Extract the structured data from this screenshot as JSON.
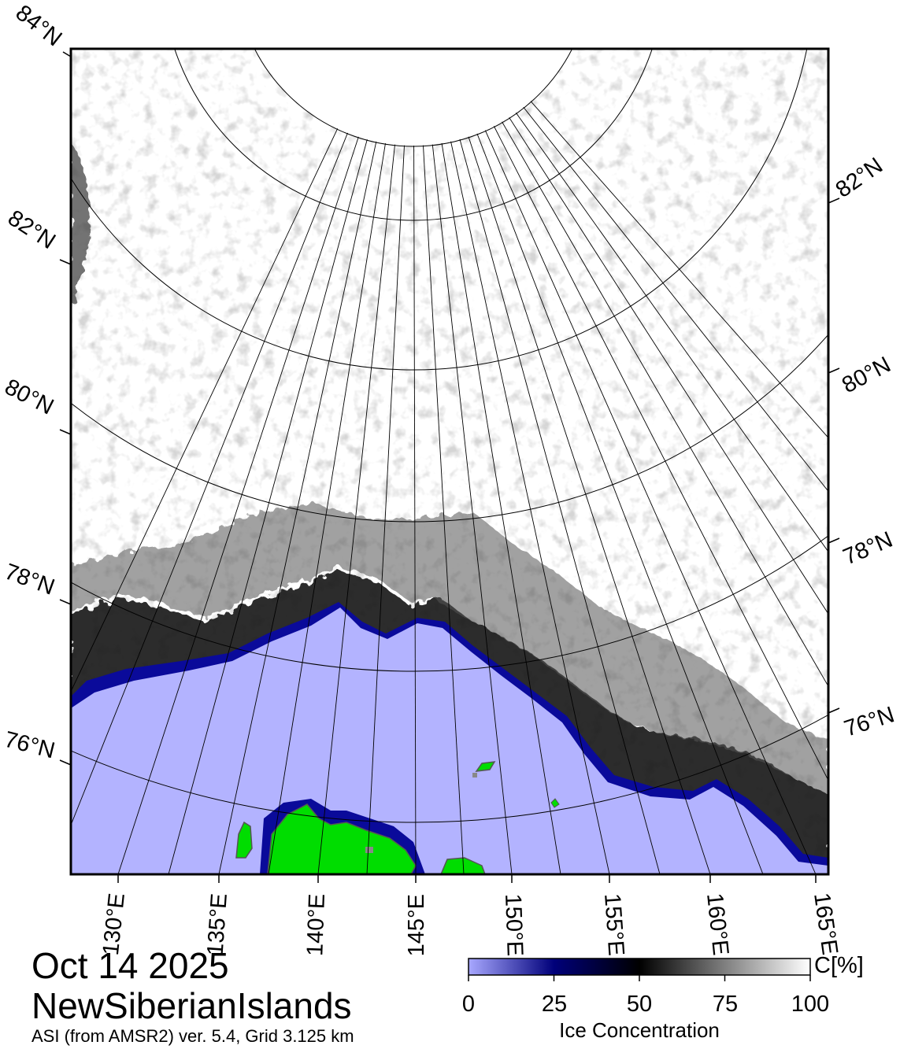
{
  "map": {
    "type": "sea-ice-concentration-map",
    "projection": "polar stereographic",
    "colors": {
      "ice_high": "#ffffff",
      "ice_mid": "#000000",
      "ice_low": "#000080",
      "open_water": "#b3b3ff",
      "land": "#00dd00",
      "land_edge": "#808080",
      "grid": "#000000"
    },
    "latitude_labels_left": [
      "84°N",
      "82°N",
      "80°N",
      "78°N",
      "76°N"
    ],
    "latitude_labels_right": [
      "82°N",
      "80°N",
      "78°N",
      "76°N"
    ],
    "longitude_labels": [
      "130°E",
      "135°E",
      "140°E",
      "145°E",
      "150°E",
      "155°E",
      "160°E",
      "165°E"
    ]
  },
  "title": {
    "date": "Oct 14 2025",
    "region": "NewSiberianIslands",
    "source": "ASI (from AMSR2) ver. 5.4,  Grid 3.125 km"
  },
  "colorbar": {
    "unit": "C[%]",
    "title": "Ice Concentration",
    "ticks": [
      "0",
      "25",
      "50",
      "75",
      "100"
    ],
    "tick_values": [
      0,
      25,
      50,
      75,
      100
    ],
    "range": [
      0,
      100
    ],
    "stops": [
      "#a8a8ff",
      "#00007a",
      "#000000",
      "#7f7f7f",
      "#ffffff"
    ]
  }
}
